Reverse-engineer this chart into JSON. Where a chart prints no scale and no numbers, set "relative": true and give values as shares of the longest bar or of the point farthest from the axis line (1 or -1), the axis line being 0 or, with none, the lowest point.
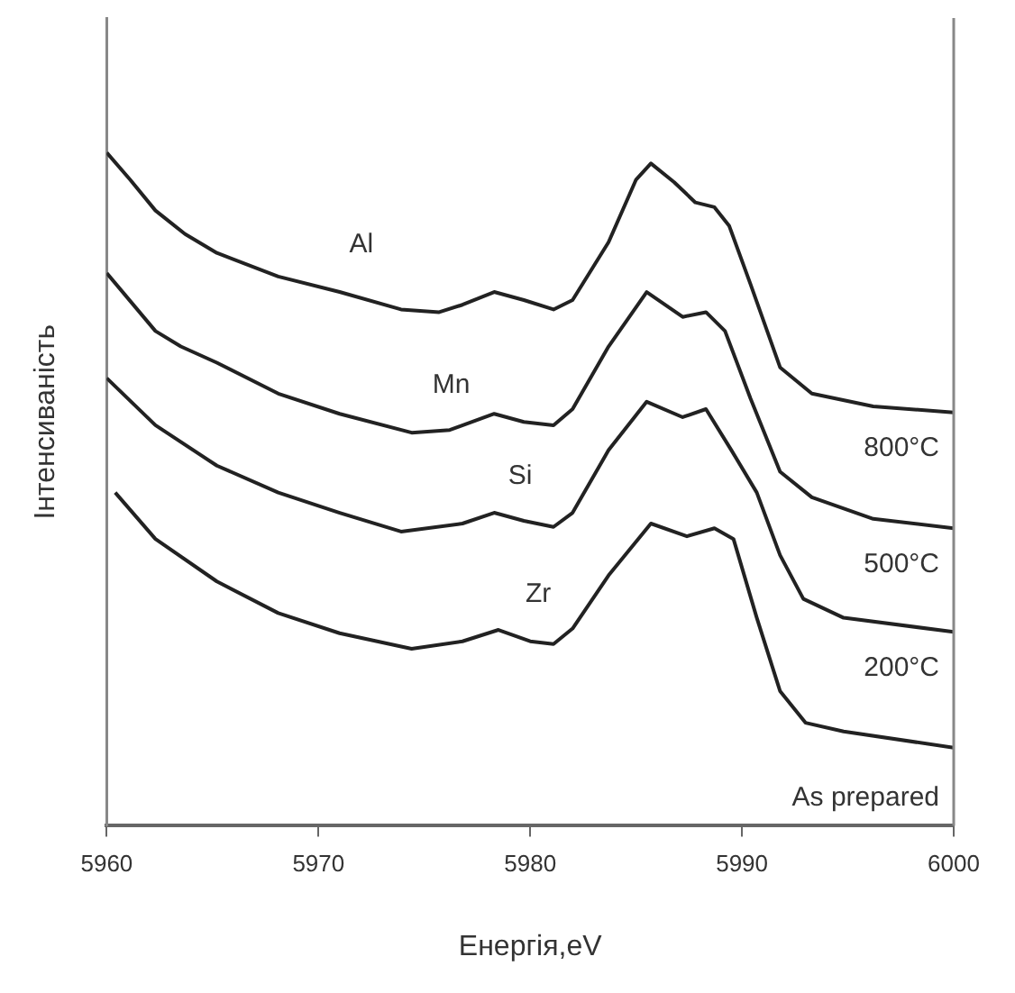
{
  "chart_data": {
    "type": "line",
    "relative": true,
    "xlabel": "Енергія,eV",
    "ylabel": "Інтенсиваність",
    "xlim": [
      5960,
      6000
    ],
    "xticks": [
      5960,
      5970,
      5980,
      5990,
      6000
    ],
    "grid": false,
    "legend": false,
    "marker": "none",
    "line_style": "solid",
    "series": [
      {
        "name": "Al",
        "color": "#222222",
        "x": [
          5960,
          5961.1,
          5962.3,
          5963.7,
          5965.2,
          5968.1,
          5971.0,
          5973.9,
          5975.7,
          5976.8,
          5978.3,
          5979.7,
          5981.1,
          5982.0,
          5983.7,
          5985.0,
          5985.7,
          5986.8,
          5987.8,
          5988.7,
          5989.4,
          5990.4,
          5991.8,
          5993.3,
          5996.2,
          6000
        ],
        "values": [
          1.0,
          0.96,
          0.914,
          0.879,
          0.851,
          0.816,
          0.793,
          0.767,
          0.763,
          0.774,
          0.793,
          0.781,
          0.767,
          0.781,
          0.867,
          0.96,
          0.984,
          0.956,
          0.926,
          0.919,
          0.891,
          0.805,
          0.681,
          0.642,
          0.623,
          0.614
        ]
      },
      {
        "name": "Mn",
        "color": "#222222",
        "x": [
          5960,
          5962.3,
          5963.5,
          5965.2,
          5968.1,
          5971.0,
          5974.4,
          5976.2,
          5978.3,
          5979.7,
          5981.1,
          5982.0,
          5983.7,
          5985.5,
          5987.2,
          5988.3,
          5989.2,
          5990.4,
          5991.8,
          5993.3,
          5996.2,
          6000
        ],
        "values": [
          0.821,
          0.735,
          0.712,
          0.688,
          0.642,
          0.612,
          0.584,
          0.588,
          0.612,
          0.6,
          0.595,
          0.619,
          0.712,
          0.793,
          0.756,
          0.763,
          0.735,
          0.635,
          0.526,
          0.488,
          0.456,
          0.442
        ]
      },
      {
        "name": "Si",
        "color": "#222222",
        "x": [
          5960,
          5962.3,
          5965.2,
          5968.1,
          5971.0,
          5973.9,
          5976.8,
          5978.3,
          5979.7,
          5981.1,
          5982.0,
          5983.7,
          5985.5,
          5987.2,
          5988.3,
          5989.5,
          5990.7,
          5991.8,
          5992.9,
          5994.8,
          6000
        ],
        "values": [
          0.665,
          0.595,
          0.535,
          0.495,
          0.465,
          0.437,
          0.449,
          0.465,
          0.453,
          0.444,
          0.465,
          0.558,
          0.63,
          0.607,
          0.619,
          0.558,
          0.495,
          0.402,
          0.337,
          0.309,
          0.288
        ]
      },
      {
        "name": "Zr",
        "color": "#222222",
        "x": [
          5960.4,
          5962.3,
          5965.2,
          5968.1,
          5971.0,
          5974.4,
          5976.8,
          5978.5,
          5980.0,
          5981.1,
          5982.0,
          5983.7,
          5985.7,
          5987.4,
          5988.7,
          5989.6,
          5990.7,
          5991.8,
          5993.0,
          5994.8,
          6000
        ],
        "values": [
          0.495,
          0.426,
          0.363,
          0.316,
          0.286,
          0.263,
          0.274,
          0.291,
          0.274,
          0.27,
          0.293,
          0.372,
          0.449,
          0.43,
          0.442,
          0.426,
          0.309,
          0.2,
          0.153,
          0.14,
          0.116
        ]
      }
    ],
    "annotations": [
      "800°C",
      "500°C",
      "200°C",
      "As prepared"
    ]
  }
}
